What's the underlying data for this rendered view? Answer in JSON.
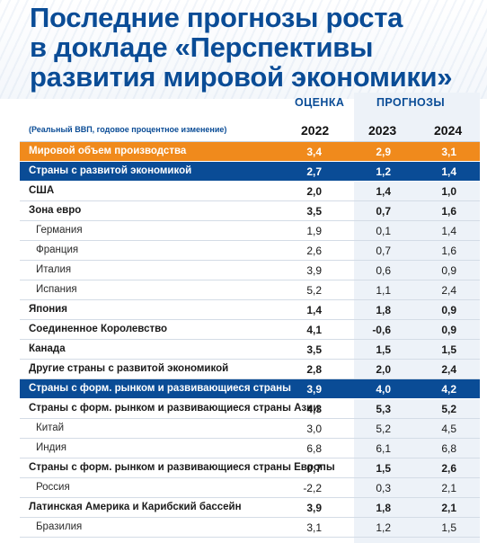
{
  "title_lines": [
    "Последние прогнозы роста",
    "в докладе «Перспективы",
    "развития мировой экономики»"
  ],
  "header": {
    "estimate_label": "ОЦЕНКА",
    "forecast_label": "ПРОГНОЗЫ",
    "note": "(Реальный ВВП, годовое процентное изменение)",
    "years": [
      "2022",
      "2023",
      "2024"
    ]
  },
  "rows": [
    {
      "label": "Мировой объем производства",
      "v": [
        "3,4",
        "2,9",
        "3,1"
      ],
      "style": "orange"
    },
    {
      "label": "Страны с развитой экономикой",
      "v": [
        "2,7",
        "1,2",
        "1,4"
      ],
      "style": "blue"
    },
    {
      "label": "США",
      "v": [
        "2,0",
        "1,4",
        "1,0"
      ],
      "style": "bold"
    },
    {
      "label": "Зона евро",
      "v": [
        "3,5",
        "0,7",
        "1,6"
      ],
      "style": "bold"
    },
    {
      "label": "Германия",
      "v": [
        "1,9",
        "0,1",
        "1,4"
      ],
      "style": "sub"
    },
    {
      "label": "Франция",
      "v": [
        "2,6",
        "0,7",
        "1,6"
      ],
      "style": "sub"
    },
    {
      "label": "Италия",
      "v": [
        "3,9",
        "0,6",
        "0,9"
      ],
      "style": "sub"
    },
    {
      "label": "Испания",
      "v": [
        "5,2",
        "1,1",
        "2,4"
      ],
      "style": "sub"
    },
    {
      "label": "Япония",
      "v": [
        "1,4",
        "1,8",
        "0,9"
      ],
      "style": "bold"
    },
    {
      "label": "Соединенное Королевство",
      "v": [
        "4,1",
        "-0,6",
        "0,9"
      ],
      "style": "bold"
    },
    {
      "label": "Канада",
      "v": [
        "3,5",
        "1,5",
        "1,5"
      ],
      "style": "bold"
    },
    {
      "label": "Другие страны с развитой экономикой",
      "v": [
        "2,8",
        "2,0",
        "2,4"
      ],
      "style": "bold"
    },
    {
      "label": "Страны с форм. рынком и развивающиеся страны",
      "v": [
        "3,9",
        "4,0",
        "4,2"
      ],
      "style": "blue"
    },
    {
      "label": "Страны с форм. рынком и развивающиеся страны Азии",
      "v": [
        "4,3",
        "5,3",
        "5,2"
      ],
      "style": "bold"
    },
    {
      "label": "Китай",
      "v": [
        "3,0",
        "5,2",
        "4,5"
      ],
      "style": "sub"
    },
    {
      "label": "Индия",
      "v": [
        "6,8",
        "6,1",
        "6,8"
      ],
      "style": "sub"
    },
    {
      "label": "Страны с форм. рынком и развивающиеся страны Европы",
      "v": [
        "0,7",
        "1,5",
        "2,6"
      ],
      "style": "bold"
    },
    {
      "label": "Россия",
      "v": [
        "-2,2",
        "0,3",
        "2,1"
      ],
      "style": "sub"
    },
    {
      "label": "Латинская Америка и Карибский бассейн",
      "v": [
        "3,9",
        "1,8",
        "2,1"
      ],
      "style": "bold"
    },
    {
      "label": "Бразилия",
      "v": [
        "3,1",
        "1,2",
        "1,5"
      ],
      "style": "sub"
    }
  ]
}
